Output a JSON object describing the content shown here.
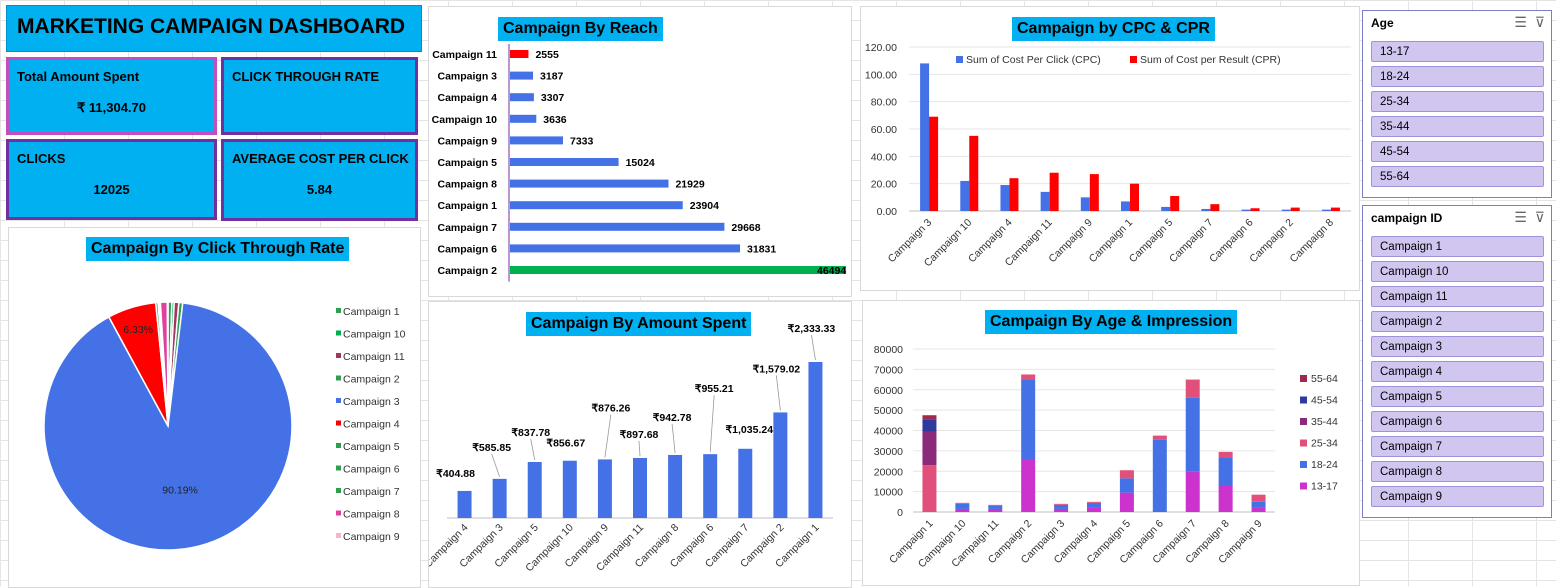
{
  "dashboard": {
    "title": "MARKETING CAMPAIGN DASHBOARD",
    "kpis": {
      "total_label": "Total Amount Spent",
      "total_value": "₹  11,304.70",
      "ctr_label": "CLICK THROUGH RATE",
      "clicks_label": "CLICKS",
      "clicks_value": "12025",
      "acpc_label": "AVERAGE COST PER CLICK",
      "acpc_value": "5.84"
    }
  },
  "slicers": {
    "age": {
      "title": "Age",
      "items": [
        "13-17",
        "18-24",
        "25-34",
        "35-44",
        "45-54",
        "55-64"
      ]
    },
    "campaign": {
      "title": "campaign ID",
      "items": [
        "Campaign 1",
        "Campaign 10",
        "Campaign 11",
        "Campaign 2",
        "Campaign 3",
        "Campaign 4",
        "Campaign 5",
        "Campaign 6",
        "Campaign 7",
        "Campaign 8",
        "Campaign 9"
      ]
    }
  },
  "colors": {
    "accent": "#00b0f0",
    "kpi_border": "#7030a0",
    "bar_blue": "#4472e6",
    "red": "#ff0000",
    "green": "#00b050"
  },
  "chart_data": [
    {
      "id": "reach",
      "type": "bar",
      "orientation": "horizontal",
      "title": "Campaign By Reach",
      "categories": [
        "Campaign 11",
        "Campaign 3",
        "Campaign 4",
        "Campaign 10",
        "Campaign 9",
        "Campaign 5",
        "Campaign 8",
        "Campaign 1",
        "Campaign 7",
        "Campaign 6",
        "Campaign 2"
      ],
      "values": [
        2555,
        3187,
        3307,
        3636,
        7333,
        15024,
        21929,
        23904,
        29668,
        31831,
        46494
      ],
      "bar_colors": [
        "#ff0000",
        "#4472e6",
        "#4472e6",
        "#4472e6",
        "#4472e6",
        "#4472e6",
        "#4472e6",
        "#4472e6",
        "#4472e6",
        "#4472e6",
        "#00b050"
      ],
      "xlim": [
        0,
        46494
      ]
    },
    {
      "id": "cpc_cpr",
      "type": "bar",
      "title": "Campaign by CPC & CPR",
      "categories": [
        "Campaign 3",
        "Campaign 10",
        "Campaign 4",
        "Campaign 11",
        "Campaign 9",
        "Campaign 1",
        "Campaign 5",
        "Campaign 7",
        "Campaign 6",
        "Campaign 2",
        "Campaign 8"
      ],
      "series": [
        {
          "name": "Sum of Cost Per Click (CPC)",
          "color": "#4472e6",
          "values": [
            108,
            22,
            19,
            14,
            10,
            7,
            3,
            1.5,
            1,
            1,
            1
          ]
        },
        {
          "name": "Sum of Cost per Result (CPR)",
          "color": "#ff0000",
          "values": [
            69,
            55,
            24,
            28,
            27,
            20,
            11,
            5,
            2,
            2.5,
            2.5
          ]
        }
      ],
      "yticks": [
        "0.00",
        "20.00",
        "40.00",
        "60.00",
        "80.00",
        "100.00",
        "120.00"
      ],
      "ylim": [
        0,
        120
      ],
      "legend": "top"
    },
    {
      "id": "ctr_pie",
      "type": "pie",
      "title": "Campaign By Click Through Rate",
      "categories": [
        "Campaign 1",
        "Campaign 10",
        "Campaign 11",
        "Campaign 2",
        "Campaign 3",
        "Campaign 4",
        "Campaign 5",
        "Campaign 6",
        "Campaign 7",
        "Campaign 8",
        "Campaign 9"
      ],
      "values": [
        0.5,
        0.3,
        0.6,
        0.5,
        90.19,
        6.33,
        0.3,
        0.1,
        0.2,
        0.9,
        0.08
      ],
      "colors": [
        "#2e9e4f",
        "#00b050",
        "#a5355e",
        "#2e9e4f",
        "#4472e6",
        "#ff0000",
        "#2e9e4f",
        "#2e9e4f",
        "#2e9e4f",
        "#e040a0",
        "#f4b6c8"
      ],
      "data_labels": [
        "",
        "",
        "",
        "",
        "90.19%",
        "6.33%",
        "",
        "",
        "",
        "",
        ""
      ],
      "legend": "right"
    },
    {
      "id": "amount",
      "type": "bar",
      "title": "Campaign By Amount Spent",
      "categories": [
        "Campaign 4",
        "Campaign 3",
        "Campaign 5",
        "Campaign 10",
        "Campaign 9",
        "Campaign 11",
        "Campaign 8",
        "Campaign 6",
        "Campaign 7",
        "Campaign 2",
        "Campaign 1"
      ],
      "values": [
        404.88,
        585.85,
        837.78,
        856.67,
        876.26,
        897.68,
        942.78,
        955.21,
        1035.24,
        1579.02,
        2333.33
      ],
      "data_labels": [
        "₹404.88",
        "₹585.85",
        "₹837.78",
        "₹856.67",
        "₹876.26",
        "₹897.68",
        "₹942.78",
        "₹955.21",
        "₹1,035.24",
        "₹1,579.02",
        "₹2,333.33"
      ],
      "ylim": [
        0,
        2333.33
      ]
    },
    {
      "id": "age_impr",
      "type": "bar",
      "stacked": true,
      "title": "Campaign By Age & Impression",
      "categories": [
        "Campaign 1",
        "Campaign 10",
        "Campaign 11",
        "Campaign 2",
        "Campaign 3",
        "Campaign 4",
        "Campaign 5",
        "Campaign 6",
        "Campaign 7",
        "Campaign 8",
        "Campaign 9"
      ],
      "series": [
        {
          "name": "13-17",
          "color": "#cc33cc",
          "values": [
            0,
            1500,
            1500,
            26000,
            1500,
            2000,
            9500,
            0,
            20000,
            13000,
            2000
          ]
        },
        {
          "name": "18-24",
          "color": "#4472e6",
          "values": [
            0,
            2500,
            1500,
            39000,
            2000,
            2500,
            7000,
            35500,
            36000,
            13500,
            3000
          ]
        },
        {
          "name": "25-34",
          "color": "#e0507a",
          "values": [
            23000,
            500,
            500,
            2500,
            500,
            500,
            4000,
            2000,
            9000,
            3000,
            3500
          ]
        },
        {
          "name": "35-44",
          "color": "#8b2a7a",
          "values": [
            16500,
            0,
            0,
            0,
            0,
            0,
            0,
            0,
            0,
            0,
            0
          ]
        },
        {
          "name": "45-54",
          "color": "#2e3a9e",
          "values": [
            6000,
            0,
            0,
            0,
            0,
            0,
            0,
            0,
            0,
            0,
            0
          ]
        },
        {
          "name": "55-64",
          "color": "#9e2a50",
          "values": [
            2000,
            0,
            0,
            0,
            0,
            0,
            0,
            0,
            0,
            0,
            0
          ]
        }
      ],
      "yticks": [
        "0",
        "10000",
        "20000",
        "30000",
        "40000",
        "50000",
        "60000",
        "70000",
        "80000"
      ],
      "ylim": [
        0,
        80000
      ],
      "legend": "right"
    }
  ]
}
